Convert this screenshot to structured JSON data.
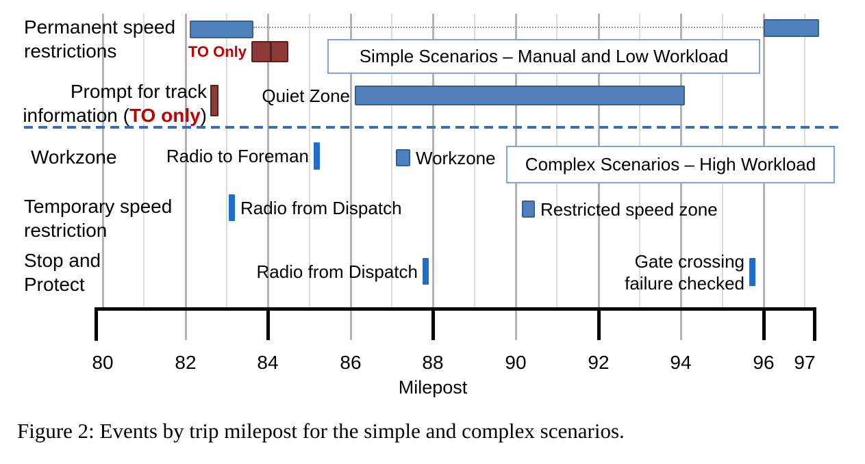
{
  "figure": {
    "caption": "Figure 2:  Events by trip milepost for the simple and complex scenarios."
  },
  "colors": {
    "bar_blue": "#4f81bd",
    "bar_blue_border": "#36608e",
    "tick_bright_blue": "#1f6fc8",
    "bar_dark_red": "#8e3a38",
    "bar_dark_red_border": "#54211f",
    "red_text": "#c00000",
    "dashed_separator_blue": "#3a6fb7",
    "grid_even": "#b3b3b3",
    "grid_odd": "#dcdcdc",
    "axis_black": "#000000",
    "scenario_box_border": "#7da7d9"
  },
  "chart_data": {
    "type": "gantt-timeline",
    "xlabel": "Milepost",
    "xlim": [
      80,
      97.5
    ],
    "x_ticks": [
      80,
      82,
      84,
      86,
      88,
      90,
      92,
      94,
      96,
      97
    ],
    "grid": true,
    "row_labels": [
      {
        "id": "permanent-speed-restrictions",
        "lines": [
          "Permanent speed",
          "restrictions"
        ]
      },
      {
        "id": "prompt-for-track-information",
        "lines": [
          "Prompt for track"
        ],
        "composite_line": {
          "prefix": "information (",
          "red": "TO only",
          "suffix": ")"
        }
      },
      {
        "id": "workzone",
        "lines": [
          "Workzone"
        ]
      },
      {
        "id": "temporary-speed-restriction",
        "lines": [
          "Temporary speed",
          "restriction"
        ]
      },
      {
        "id": "stop-and-protect",
        "lines": [
          "Stop and",
          "Protect"
        ]
      }
    ],
    "events": [
      {
        "id": "perm-bar-1",
        "row": "Permanent speed restrictions",
        "type": "bar",
        "start_mp": 82.1,
        "end_mp": 83.65,
        "color": "blue"
      },
      {
        "id": "perm-bar-2",
        "row": "Permanent speed restrictions",
        "type": "bar",
        "start_mp": 96.0,
        "end_mp": 97.35,
        "color": "blue"
      },
      {
        "id": "perm-to-only-bar",
        "row": "Permanent speed restrictions",
        "type": "bar",
        "start_mp": 83.6,
        "end_mp": 84.5,
        "color": "dark-red",
        "segments": 2,
        "label": "TO Only",
        "label_side": "left",
        "label_style": "red-bold"
      },
      {
        "id": "prompt-track-marker",
        "row": "Prompt for track information (TO only)",
        "type": "tick",
        "start_mp": 82.6,
        "color": "dark-red"
      },
      {
        "id": "quiet-zone-bar",
        "row": "Prompt for track information (TO only)",
        "type": "bar",
        "start_mp": 86.1,
        "end_mp": 94.1,
        "color": "blue",
        "label": "Quiet Zone",
        "label_side": "left"
      },
      {
        "id": "radio-to-foreman-tick",
        "row": "Workzone",
        "type": "tick",
        "start_mp": 85.1,
        "color": "bright-blue",
        "label": "Radio to Foreman",
        "label_side": "left"
      },
      {
        "id": "workzone-marker",
        "row": "Workzone",
        "type": "square",
        "start_mp": 87.1,
        "color": "blue",
        "label": "Workzone",
        "label_side": "right"
      },
      {
        "id": "radio-from-dispatch-temp-tick",
        "row": "Temporary speed restriction",
        "type": "tick",
        "start_mp": 83.05,
        "color": "bright-blue",
        "label": "Radio from Dispatch",
        "label_side": "right"
      },
      {
        "id": "restricted-speed-zone-marker",
        "row": "Temporary speed restriction",
        "type": "square",
        "start_mp": 90.15,
        "color": "blue",
        "label": "Restricted speed zone",
        "label_side": "right"
      },
      {
        "id": "radio-from-dispatch-stop-tick",
        "row": "Stop and Protect",
        "type": "tick",
        "start_mp": 87.75,
        "color": "bright-blue",
        "label": "Radio from Dispatch",
        "label_side": "left"
      },
      {
        "id": "gate-crossing-tick",
        "row": "Stop and Protect",
        "type": "tick",
        "start_mp": 95.65,
        "color": "bright-blue",
        "label": "Gate crossing\nfailure checked",
        "label_side": "left"
      }
    ],
    "connector": {
      "from_mp": 83.65,
      "to_mp": 96.0,
      "style": "dotted",
      "links": "perm-bar-1 to perm-bar-2"
    },
    "annotations": [
      {
        "id": "simple-scenarios-box",
        "label": "Simple Scenarios – Manual and Low Workload"
      },
      {
        "id": "complex-scenarios-box",
        "label": "Complex Scenarios – High Workload"
      }
    ],
    "separator": {
      "style": "dashed-blue",
      "between": "simple rows and complex rows"
    }
  }
}
